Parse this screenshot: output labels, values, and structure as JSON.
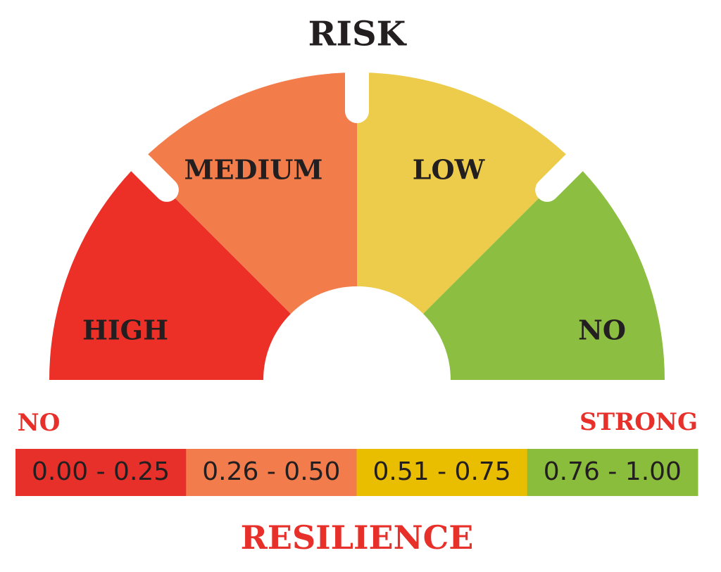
{
  "title": "RISK",
  "gauge": {
    "segments": [
      {
        "label": "HIGH",
        "color": "#ec2f27"
      },
      {
        "label": "MEDIUM",
        "color": "#f37c4b"
      },
      {
        "label": "LOW",
        "color": "#edcb4b"
      },
      {
        "label": "NO",
        "color": "#8bbe41"
      }
    ]
  },
  "scale": {
    "left_label": "NO",
    "right_label": "STRONG",
    "title": "RESILIENCE",
    "ranges": [
      {
        "label": "0.00 - 0.25",
        "color": "#e8302b"
      },
      {
        "label": "0.26 - 0.50",
        "color": "#f37c4c"
      },
      {
        "label": "0.51 - 0.75",
        "color": "#e9bd00"
      },
      {
        "label": "0.76 - 1.00",
        "color": "#8bbd3c"
      }
    ]
  }
}
